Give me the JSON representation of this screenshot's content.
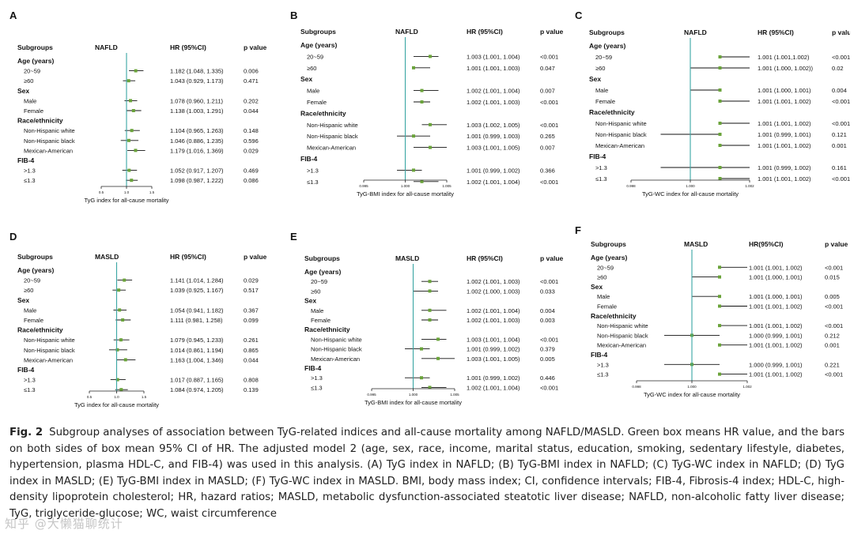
{
  "colors": {
    "axis": "#222222",
    "ref": "#3aa6a4",
    "marker": "#6aa33a",
    "ci": "#111111"
  },
  "caption": {
    "label": "Fig. 2",
    "text": "Subgroup analyses of association between TyG-related indices and all-cause mortality among NAFLD/MASLD. Green box means HR value, and the bars on both sides of box mean 95% CI of HR. The adjusted model 2 (age, sex, race, income, marital status, education, smoking, sedentary lifestyle, diabetes, hypertension, plasma HDL-C, and FIB-4) was used in this analysis. (A) TyG index in NAFLD; (B) TyG-BMI index in NAFLD; (C) TyG-WC index in NAFLD; (D) TyG index in MASLD; (E) TyG-BMI index in MASLD; (F) TyG-WC index in MASLD. BMI, body mass index; CI, confidence intervals; FIB-4, Fibrosis-4 index; HDL-C, high-density lipoprotein cholesterol; HR, hazard ratios; MASLD, metabolic dysfunction-associated steatotic liver disease; NAFLD, non-alcoholic fatty liver disease; TyG, triglyceride-glucose; WC, waist circumference"
  },
  "watermark": "知乎 @大懒猫聊统计",
  "chart_data": [
    {
      "panel": "A",
      "type": "forest",
      "group_label": "NAFLD",
      "hr_header": "HR (95%CI)",
      "p_header": "p value",
      "subgroups_header": "Subgroups",
      "xlabel": "TyG index for all-cause mortality",
      "xlim": [
        0.5,
        1.5
      ],
      "ref": 1.0,
      "ticks": [
        "0.5",
        "1.0",
        "1.5"
      ],
      "rows": [
        {
          "label": "Age (years)",
          "header": true
        },
        {
          "label": "20~59",
          "hr": 1.182,
          "lo": 1.048,
          "hi": 1.335,
          "text": "1.182 (1.048, 1.335)",
          "p": "0.006"
        },
        {
          "label": "≥60",
          "hr": 1.043,
          "lo": 0.929,
          "hi": 1.173,
          "text": "1.043 (0.929, 1.173)",
          "p": "0.471"
        },
        {
          "label": "Sex",
          "header": true
        },
        {
          "label": "Male",
          "hr": 1.078,
          "lo": 0.96,
          "hi": 1.211,
          "text": "1.078 (0.960, 1.211)",
          "p": "0.202"
        },
        {
          "label": "Female",
          "hr": 1.138,
          "lo": 1.003,
          "hi": 1.291,
          "text": "1.138 (1.003, 1.291)",
          "p": "0.044"
        },
        {
          "label": "Race/ethnicity",
          "header": true
        },
        {
          "label": "Non-Hispanic white",
          "hr": 1.104,
          "lo": 0.965,
          "hi": 1.263,
          "text": "1.104 (0.965, 1.263)",
          "p": "0.148"
        },
        {
          "label": "Non-Hispanic black",
          "hr": 1.046,
          "lo": 0.886,
          "hi": 1.235,
          "text": "1.046 (0.886, 1.235)",
          "p": "0.596"
        },
        {
          "label": "Mexican-American",
          "hr": 1.179,
          "lo": 1.016,
          "hi": 1.369,
          "text": "1.179 (1.016, 1.369)",
          "p": "0.029"
        },
        {
          "label": "FIB-4",
          "header": true
        },
        {
          "label": ">1.3",
          "hr": 1.052,
          "lo": 0.917,
          "hi": 1.207,
          "text": "1.052 (0.917, 1.207)",
          "p": "0.469"
        },
        {
          "label": "≤1.3",
          "hr": 1.098,
          "lo": 0.987,
          "hi": 1.222,
          "text": "1.098 (0.987, 1.222)",
          "p": "0.086"
        }
      ]
    },
    {
      "panel": "B",
      "type": "forest",
      "group_label": "NAFLD",
      "hr_header": "HR (95%CI)",
      "p_header": "p value",
      "subgroups_header": "Subgroups",
      "xlabel": "TyG-BMI index for all-cause mortality",
      "xlim": [
        0.995,
        1.005
      ],
      "ref": 1.0,
      "ticks": [
        "0.995",
        "1.000",
        "1.005"
      ],
      "rows": [
        {
          "label": "Age (years)",
          "header": true
        },
        {
          "label": "20~59",
          "hr": 1.003,
          "lo": 1.001,
          "hi": 1.004,
          "text": "1.003 (1.001, 1.004)",
          "p": "<0.001"
        },
        {
          "label": "≥60",
          "hr": 1.001,
          "lo": 1.001,
          "hi": 1.003,
          "text": "1.001 (1.001, 1.003)",
          "p": "0.047"
        },
        {
          "label": "Sex",
          "header": true
        },
        {
          "label": "Male",
          "hr": 1.002,
          "lo": 1.001,
          "hi": 1.004,
          "text": "1.002 (1.001, 1.004)",
          "p": "0.007"
        },
        {
          "label": "Female",
          "hr": 1.002,
          "lo": 1.001,
          "hi": 1.003,
          "text": "1.002 (1.001, 1.003)",
          "p": "<0.001"
        },
        {
          "label": "Race/ethnicity",
          "header": true
        },
        {
          "label": "Non-Hispanic white",
          "hr": 1.003,
          "lo": 1.002,
          "hi": 1.005,
          "text": "1.003 (1.002, 1.005)",
          "p": "<0.001"
        },
        {
          "label": "Non-Hispanic black",
          "hr": 1.001,
          "lo": 0.999,
          "hi": 1.003,
          "text": "1.001 (0.999, 1.003)",
          "p": "0.265"
        },
        {
          "label": "Mexican-American",
          "hr": 1.003,
          "lo": 1.001,
          "hi": 1.005,
          "text": "1.003 (1.001, 1.005)",
          "p": "0.007"
        },
        {
          "label": "FIB-4",
          "header": true
        },
        {
          "label": ">1.3",
          "hr": 1.001,
          "lo": 0.999,
          "hi": 1.002,
          "text": "1.001 (0.999, 1.002)",
          "p": "0.366"
        },
        {
          "label": "≤1.3",
          "hr": 1.002,
          "lo": 1.001,
          "hi": 1.004,
          "text": "1.002 (1.001, 1.004)",
          "p": "<0.001"
        }
      ]
    },
    {
      "panel": "C",
      "type": "forest",
      "group_label": "NAFLD",
      "hr_header": "HR (95%CI)",
      "p_header": "p value",
      "subgroups_header": "Subgroups",
      "xlabel": "TyG-WC index for all-cause mortality",
      "xlim": [
        0.998,
        1.002
      ],
      "ref": 1.0,
      "ticks": [
        "0.998",
        "1.000",
        "1.002"
      ],
      "rows": [
        {
          "label": "Age (years)",
          "header": true
        },
        {
          "label": "20~59",
          "hr": 1.001,
          "lo": 1.001,
          "hi": 1.002,
          "text": "1.001 (1.001,1.002)",
          "p": "<0.001"
        },
        {
          "label": "≥60",
          "hr": 1.001,
          "lo": 1.0,
          "hi": 1.002,
          "text": "1.001 (1.000, 1.002))",
          "p": "0.02"
        },
        {
          "label": "Sex",
          "header": true
        },
        {
          "label": "Male",
          "hr": 1.001,
          "lo": 1.0,
          "hi": 1.001,
          "text": "1.001 (1.000, 1.001)",
          "p": "0.004"
        },
        {
          "label": "Female",
          "hr": 1.001,
          "lo": 1.001,
          "hi": 1.002,
          "text": "1.001 (1.001, 1.002)",
          "p": "<0.001"
        },
        {
          "label": "Race/ethnicity",
          "header": true
        },
        {
          "label": "Non-Hispanic white",
          "hr": 1.001,
          "lo": 1.001,
          "hi": 1.002,
          "text": "1.001 (1.001, 1.002)",
          "p": "<0.001"
        },
        {
          "label": "Non-Hispanic black",
          "hr": 1.001,
          "lo": 0.999,
          "hi": 1.001,
          "text": "1.001 (0.999, 1.001)",
          "p": "0.121"
        },
        {
          "label": "Mexican-American",
          "hr": 1.001,
          "lo": 1.001,
          "hi": 1.002,
          "text": "1.001 (1.001, 1.002)",
          "p": "0.001"
        },
        {
          "label": "FIB-4",
          "header": true
        },
        {
          "label": ">1.3",
          "hr": 1.001,
          "lo": 0.999,
          "hi": 1.002,
          "text": "1.001 (0.999, 1.002)",
          "p": "0.161"
        },
        {
          "label": "≤1.3",
          "hr": 1.001,
          "lo": 1.001,
          "hi": 1.002,
          "text": "1.001 (1.001, 1.002)",
          "p": "<0.001"
        }
      ]
    },
    {
      "panel": "D",
      "type": "forest",
      "group_label": "MASLD",
      "hr_header": "HR (95%CI)",
      "p_header": "p value",
      "subgroups_header": "Subgroups",
      "xlabel": "TyG index for all-cause mortality",
      "xlim": [
        0.5,
        1.5
      ],
      "ref": 1.0,
      "ticks": [
        "0.5",
        "1.0",
        "1.5"
      ],
      "rows": [
        {
          "label": "Age (years)",
          "header": true
        },
        {
          "label": "20~59",
          "hr": 1.141,
          "lo": 1.014,
          "hi": 1.284,
          "text": "1.141 (1.014, 1.284)",
          "p": "0.029"
        },
        {
          "label": "≥60",
          "hr": 1.039,
          "lo": 0.925,
          "hi": 1.167,
          "text": "1.039 (0.925, 1.167)",
          "p": "0.517"
        },
        {
          "label": "Sex",
          "header": true
        },
        {
          "label": "Male",
          "hr": 1.054,
          "lo": 0.941,
          "hi": 1.182,
          "text": "1.054 (0.941, 1.182)",
          "p": "0.367"
        },
        {
          "label": "Female",
          "hr": 1.111,
          "lo": 0.981,
          "hi": 1.258,
          "text": "1.111 (0.981, 1.258)",
          "p": "0.099"
        },
        {
          "label": "Race/ethnicity",
          "header": true
        },
        {
          "label": "Non-Hispanic white",
          "hr": 1.079,
          "lo": 0.945,
          "hi": 1.233,
          "text": "1.079 (0.945, 1.233)",
          "p": "0.261"
        },
        {
          "label": "Non-Hispanic black",
          "hr": 1.014,
          "lo": 0.861,
          "hi": 1.194,
          "text": "1.014 (0.861, 1.194)",
          "p": "0.865"
        },
        {
          "label": "Mexican-American",
          "hr": 1.163,
          "lo": 1.004,
          "hi": 1.346,
          "text": "1.163 (1.004, 1.346)",
          "p": "0.044"
        },
        {
          "label": "FIB-4",
          "header": true
        },
        {
          "label": ">1.3",
          "hr": 1.017,
          "lo": 0.887,
          "hi": 1.165,
          "text": "1.017 (0.887, 1.165)",
          "p": "0.808"
        },
        {
          "label": "≤1.3",
          "hr": 1.084,
          "lo": 0.974,
          "hi": 1.205,
          "text": "1.084 (0.974, 1.205)",
          "p": "0.139"
        }
      ]
    },
    {
      "panel": "E",
      "type": "forest",
      "group_label": "MASLD",
      "hr_header": "HR (95%CI)",
      "p_header": "p value",
      "subgroups_header": "Subgroups",
      "xlabel": "TyG-BMI index for all-cause mortality",
      "xlim": [
        0.995,
        1.005
      ],
      "ref": 1.0,
      "ticks": [
        "0.995",
        "1.000",
        "1.005"
      ],
      "rows": [
        {
          "label": "Age (years)",
          "header": true
        },
        {
          "label": "20~59",
          "hr": 1.002,
          "lo": 1.001,
          "hi": 1.003,
          "text": "1.002 (1.001, 1.003)",
          "p": "<0.001"
        },
        {
          "label": "≥60",
          "hr": 1.002,
          "lo": 1.0,
          "hi": 1.003,
          "text": "1.002 (1.000, 1.003)",
          "p": "0.033"
        },
        {
          "label": "Sex",
          "header": true
        },
        {
          "label": "Male",
          "hr": 1.002,
          "lo": 1.001,
          "hi": 1.004,
          "text": "1.002 (1.001, 1.004)",
          "p": "0.004"
        },
        {
          "label": "Female",
          "hr": 1.002,
          "lo": 1.001,
          "hi": 1.003,
          "text": "1.002 (1.001, 1.003)",
          "p": "0.003"
        },
        {
          "label": "Race/ethnicity",
          "header": true
        },
        {
          "label": "Non-Hispanic white",
          "hr": 1.003,
          "lo": 1.001,
          "hi": 1.004,
          "text": "1.003 (1.001, 1.004)",
          "p": "<0.001"
        },
        {
          "label": "Non-Hispanic black",
          "hr": 1.001,
          "lo": 0.999,
          "hi": 1.002,
          "text": "1.001 (0.999, 1.002)",
          "p": "0.379"
        },
        {
          "label": "Mexican-American",
          "hr": 1.003,
          "lo": 1.001,
          "hi": 1.005,
          "text": "1.003 (1.001, 1.005)",
          "p": "0.005"
        },
        {
          "label": "FIB-4",
          "header": true
        },
        {
          "label": ">1.3",
          "hr": 1.001,
          "lo": 0.999,
          "hi": 1.002,
          "text": "1.001 (0.999, 1.002)",
          "p": "0.446"
        },
        {
          "label": "≤1.3",
          "hr": 1.002,
          "lo": 1.001,
          "hi": 1.004,
          "text": "1.002 (1.001, 1.004)",
          "p": "<0.001"
        }
      ]
    },
    {
      "panel": "F",
      "type": "forest",
      "group_label": "MASLD",
      "hr_header": "HR(95%CI)",
      "p_header": "p value",
      "subgroups_header": "Subgroups",
      "xlabel": "TyG-WC index for all-cause mortality",
      "xlim": [
        0.998,
        1.002
      ],
      "ref": 1.0,
      "ticks": [
        "0.998",
        "1.000",
        "1.002"
      ],
      "rows": [
        {
          "label": "Age (years)",
          "header": true
        },
        {
          "label": "20~59",
          "hr": 1.001,
          "lo": 1.001,
          "hi": 1.002,
          "text": "1.001 (1.001, 1.002)",
          "p": "<0.001"
        },
        {
          "label": "≥60",
          "hr": 1.001,
          "lo": 1.0,
          "hi": 1.001,
          "text": "1.001 (1.000, 1.001)",
          "p": "0.015"
        },
        {
          "label": "Sex",
          "header": true
        },
        {
          "label": "Male",
          "hr": 1.001,
          "lo": 1.0,
          "hi": 1.001,
          "text": "1.001 (1.000, 1.001)",
          "p": "0.005"
        },
        {
          "label": "Female",
          "hr": 1.001,
          "lo": 1.001,
          "hi": 1.002,
          "text": "1.001 (1.001, 1.002)",
          "p": "<0.001"
        },
        {
          "label": "Race/ethnicity",
          "header": true
        },
        {
          "label": "Non-Hispanic white",
          "hr": 1.001,
          "lo": 1.001,
          "hi": 1.002,
          "text": "1.001 (1.001, 1.002)",
          "p": "<0.001"
        },
        {
          "label": "Non-Hispanic black",
          "hr": 1.0,
          "lo": 0.999,
          "hi": 1.001,
          "text": "1.000 (0.999, 1.001)",
          "p": "0.212"
        },
        {
          "label": "Mexican-American",
          "hr": 1.001,
          "lo": 1.001,
          "hi": 1.002,
          "text": "1.001 (1.001, 1.002)",
          "p": "0.001"
        },
        {
          "label": "FIB-4",
          "header": true
        },
        {
          "label": ">1.3",
          "hr": 1.0,
          "lo": 0.999,
          "hi": 1.001,
          "text": "1.000 (0.999, 1.001)",
          "p": "0.221"
        },
        {
          "label": "≤1.3",
          "hr": 1.001,
          "lo": 1.001,
          "hi": 1.002,
          "text": "1.001 (1.001, 1.002)",
          "p": "<0.001"
        }
      ]
    }
  ]
}
